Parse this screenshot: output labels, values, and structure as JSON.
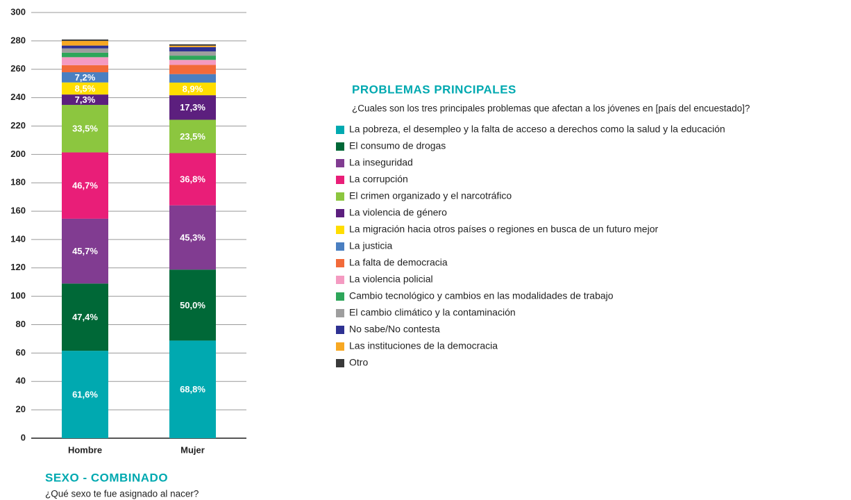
{
  "chart_data": {
    "type": "bar",
    "stacked": true,
    "title": "SEXO - COMBINADO",
    "subtitle": "¿Qué sexo te fue asignado al nacer?",
    "legend_title": "PROBLEMAS PRINCIPALES",
    "legend_subtitle": "¿Cuales son los tres principales problemas que afectan a los jóvenes en [país del encuestado]?",
    "categories": [
      "Hombre",
      "Mujer"
    ],
    "ylim": [
      0,
      300
    ],
    "yticks": [
      0,
      20,
      40,
      60,
      80,
      100,
      120,
      140,
      160,
      180,
      200,
      220,
      240,
      260,
      280,
      300
    ],
    "grid": true,
    "series": [
      {
        "name": "La pobreza, el desempleo y la falta de acceso a derechos como la salud y la educación",
        "color": "#00a9b0",
        "values": [
          61.6,
          68.8
        ],
        "value_labels": [
          "61,6%",
          "68,8%"
        ]
      },
      {
        "name": "El consumo de drogas",
        "color": "#006837",
        "values": [
          47.4,
          50.0
        ],
        "value_labels": [
          "47,4%",
          "50,0%"
        ]
      },
      {
        "name": "La inseguridad",
        "color": "#813c91",
        "values": [
          45.7,
          45.3
        ],
        "value_labels": [
          "45,7%",
          "45,3%"
        ]
      },
      {
        "name": "La corrupción",
        "color": "#e91e78",
        "values": [
          46.7,
          36.8
        ],
        "value_labels": [
          "46,7%",
          "36,8%"
        ]
      },
      {
        "name": "El crimen organizado y el narcotráfico",
        "color": "#8cc63f",
        "values": [
          33.5,
          23.5
        ],
        "value_labels": [
          "33,5%",
          "23,5%"
        ]
      },
      {
        "name": "La violencia de género",
        "color": "#5c1f7e",
        "values": [
          7.3,
          17.3
        ],
        "value_labels": [
          "7,3%",
          "17,3%"
        ]
      },
      {
        "name": "La migración hacia otros países o regiones en busca de un futuro mejor",
        "color": "#ffdd00",
        "values": [
          8.5,
          8.9
        ],
        "value_labels": [
          "8,5%",
          "8,9%"
        ]
      },
      {
        "name": "La justicia",
        "color": "#4a7fc1",
        "values": [
          7.2,
          6.0
        ],
        "value_labels": [
          "7,2%",
          null
        ]
      },
      {
        "name": "La falta de democracia",
        "color": "#f26a3a",
        "values": [
          5.0,
          6.5
        ]
      },
      {
        "name": "La violencia policial",
        "color": "#f49ac1",
        "values": [
          5.6,
          3.5
        ]
      },
      {
        "name": "Cambio tecnológico y cambios en las modalidades de trabajo",
        "color": "#2ea65a",
        "values": [
          3.2,
          3.0
        ]
      },
      {
        "name": "El cambio climático y la contaminación",
        "color": "#9e9e9e",
        "values": [
          3.0,
          3.0
        ]
      },
      {
        "name": "No sabe/No contesta",
        "color": "#2e3192",
        "values": [
          2.0,
          3.0
        ]
      },
      {
        "name": "Las instituciones de la democracia",
        "color": "#f7a823",
        "values": [
          3.3,
          1.0
        ]
      },
      {
        "name": "Otro",
        "color": "#3a3a3a",
        "values": [
          1.0,
          1.0
        ]
      }
    ]
  }
}
